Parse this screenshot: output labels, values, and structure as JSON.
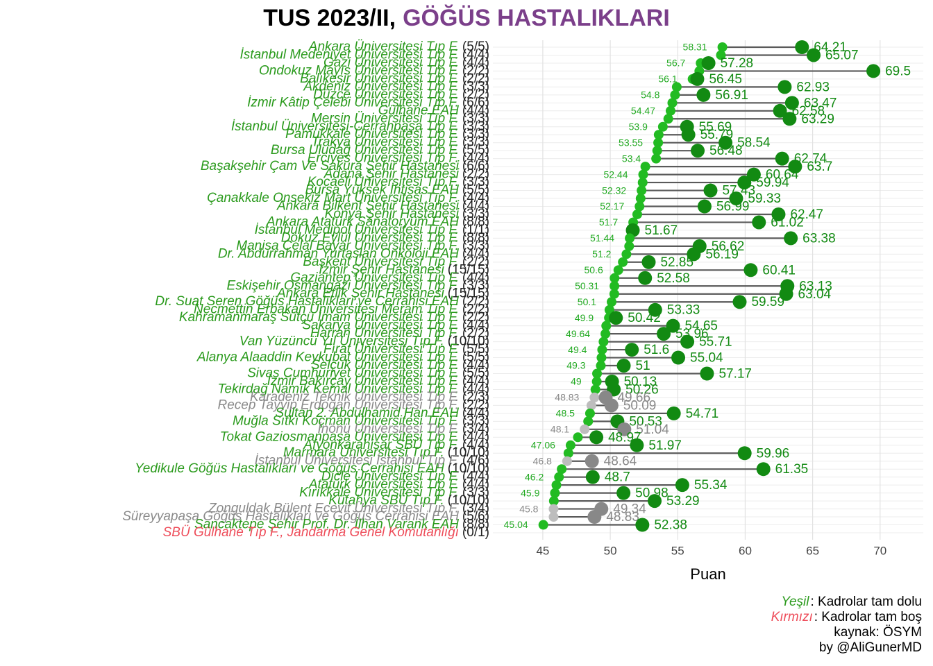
{
  "chart_data": {
    "type": "dumbbell",
    "title": "TUS 2023/II,",
    "title_highlight": "GÖĞÜS HASTALIKLARI",
    "x_label": "Puan",
    "xlim": [
      41.3,
      73.2
    ],
    "xticks": [
      45,
      50,
      55,
      60,
      65,
      70
    ],
    "grid": true,
    "palette": {
      "green": {
        "label": "#2a9a1c",
        "min": "#22bb22",
        "max": "#128a12"
      },
      "gray": {
        "label": "#8a8a8a",
        "min": "#bdbdbd",
        "max": "#888888"
      },
      "red": {
        "label": "#ee4d5a",
        "min": "#ee4d5a",
        "max": "#ee4d5a"
      }
    },
    "rows": [
      {
        "name": "Ankara Üniversitesi Tıp F.",
        "quota": "(5/5)",
        "min": 58.31,
        "max": 64.21,
        "color": "green"
      },
      {
        "name": "İstanbul Medeniyet Üniversitesi Tıp F.",
        "quota": "(4/4)",
        "min": 58.2,
        "max": 65.07,
        "color": "green"
      },
      {
        "name": "Gazi Üniversitesi Tıp F.",
        "quota": "(4/4)",
        "min": 56.7,
        "max": 57.28,
        "color": "green"
      },
      {
        "name": "Ondokuz Mayıs Üniversitesi Tıp F.",
        "quota": "(2/2)",
        "min": 56.6,
        "max": 69.5,
        "color": "green"
      },
      {
        "name": "Balıkesir Üniversitesi Tıp F.",
        "quota": "(2/2)",
        "min": 56.1,
        "max": 56.45,
        "color": "green"
      },
      {
        "name": "Akdeniz Üniversitesi Tıp F.",
        "quota": "(3/3)",
        "min": 54.93,
        "max": 62.93,
        "color": "green"
      },
      {
        "name": "Düzce Üniversitesi Tıp F.",
        "quota": "(2/2)",
        "min": 54.8,
        "max": 56.91,
        "color": "green"
      },
      {
        "name": "İzmir Kâtip Çelebi Üniversitesi Tıp F.",
        "quota": "(6/6)",
        "min": 54.6,
        "max": 63.47,
        "color": "green"
      },
      {
        "name": "Gülhane EAH",
        "quota": "(4/4)",
        "min": 54.47,
        "max": 62.58,
        "color": "green"
      },
      {
        "name": "Mersin Üniversitesi Tıp F.",
        "quota": "(3/3)",
        "min": 54.3,
        "max": 63.29,
        "color": "green"
      },
      {
        "name": "İstanbul Üniversitesi-Cerrahpaşa Tıp F.",
        "quota": "(3/3)",
        "min": 53.9,
        "max": 55.69,
        "color": "green"
      },
      {
        "name": "Pamukkale Üniversitesi Tıp F.",
        "quota": "(3/3)",
        "min": 53.59,
        "max": 55.79,
        "color": "green"
      },
      {
        "name": "Trakya Üniversitesi Tıp F.",
        "quota": "(3/3)",
        "min": 53.55,
        "max": 58.54,
        "color": "green"
      },
      {
        "name": "Bursa Uludağ Üniversitesi Tıp F.",
        "quota": "(5/5)",
        "min": 53.48,
        "max": 56.48,
        "color": "green"
      },
      {
        "name": "Erciyes Üniversitesi Tıp F.",
        "quota": "(4/4)",
        "min": 53.4,
        "max": 62.74,
        "color": "green"
      },
      {
        "name": "Başakşehir Çam Ve Sakura Şehir Hastanesi",
        "quota": "(6/6)",
        "min": 52.6,
        "max": 63.7,
        "color": "green"
      },
      {
        "name": "Adana Şehir Hastanesi",
        "quota": "(2/2)",
        "min": 52.44,
        "max": 60.64,
        "color": "green"
      },
      {
        "name": "Kocaeli Üniversitesi Tıp F.",
        "quota": "(3/3)",
        "min": 52.4,
        "max": 59.94,
        "color": "green"
      },
      {
        "name": "Bursa Yüksek İhtisas EAH",
        "quota": "(5/5)",
        "min": 52.32,
        "max": 57.43,
        "color": "green"
      },
      {
        "name": "Çanakkale Onsekiz Mart Üniversitesi Tıp F.",
        "quota": "(4/4)",
        "min": 52.25,
        "max": 59.33,
        "color": "green"
      },
      {
        "name": "Ankara Bilkent Şehir Hastanesi",
        "quota": "(4/4)",
        "min": 52.17,
        "max": 56.99,
        "color": "green"
      },
      {
        "name": "Konya Şehir Hastanesi",
        "quota": "(3/3)",
        "min": 52.0,
        "max": 62.47,
        "color": "green"
      },
      {
        "name": "Ankara Atatürk Sanatoryum EAH",
        "quota": "(8/8)",
        "min": 51.7,
        "max": 61.02,
        "color": "green"
      },
      {
        "name": "İstanbul Medipol Üniversitesi Tıp F.",
        "quota": "(1/1)",
        "min": 51.67,
        "max": 51.67,
        "color": "green"
      },
      {
        "name": "Dokuz Eylül Üniversitesi Tıp F.",
        "quota": "(8/8)",
        "min": 51.44,
        "max": 63.38,
        "color": "green"
      },
      {
        "name": "Manisa Celal Bayar Üniversitesi Tıp F.",
        "quota": "(3/3)",
        "min": 51.4,
        "max": 56.62,
        "color": "green"
      },
      {
        "name": "Dr. Abdurrahman Yurtaslan Onkoloji EAH",
        "quota": "(4/4)",
        "min": 51.2,
        "max": 56.19,
        "color": "green"
      },
      {
        "name": "Başkent Üniversitesi Tıp F.",
        "quota": "(2/2)",
        "min": 50.93,
        "max": 52.85,
        "color": "green"
      },
      {
        "name": "İzmir Şehir Hastanesi",
        "quota": "(15/15)",
        "min": 50.6,
        "max": 60.41,
        "color": "green"
      },
      {
        "name": "Gaziantep Üniversitesi Tıp F.",
        "quota": "(4/4)",
        "min": 50.32,
        "max": 52.58,
        "color": "green"
      },
      {
        "name": "Eskişehir Osmangazi Üniversitesi Tıp F.",
        "quota": "(3/3)",
        "min": 50.31,
        "max": 63.13,
        "color": "green"
      },
      {
        "name": "Ankara Etlik Şehir Hastanesi",
        "quota": "(15/15)",
        "min": 50.3,
        "max": 63.04,
        "color": "green"
      },
      {
        "name": "Dr. Suat Seren Göğüs Hastalıkları ve Cerrahisi EAH",
        "quota": "(2/2)",
        "min": 50.1,
        "max": 59.59,
        "color": "green"
      },
      {
        "name": "Necmettin Erbakan Üniversitesi Meram Tıp F.",
        "quota": "(2/2)",
        "min": 49.94,
        "max": 53.33,
        "color": "green"
      },
      {
        "name": "Kahramanmaraş Sütçü İmam Üniversitesi Tıp F.",
        "quota": "(2/2)",
        "min": 49.9,
        "max": 50.42,
        "color": "green"
      },
      {
        "name": "Sakarya Üniversitesi Tıp F.",
        "quota": "(4/4)",
        "min": 49.7,
        "max": 54.65,
        "color": "green"
      },
      {
        "name": "Harran Üniversitesi Tıp F.",
        "quota": "(2/2)",
        "min": 49.64,
        "max": 53.96,
        "color": "green"
      },
      {
        "name": "Van Yüzüncü Yıl Üniversitesi Tıp F.",
        "quota": "(10/10)",
        "min": 49.5,
        "max": 55.71,
        "color": "green"
      },
      {
        "name": "Fırat Üniversitesi Tıp F.",
        "quota": "(5/5)",
        "min": 49.4,
        "max": 51.6,
        "color": "green"
      },
      {
        "name": "Alanya Alaaddin Keykubat Üniversitesi Tıp F.",
        "quota": "(5/5)",
        "min": 49.35,
        "max": 55.04,
        "color": "green"
      },
      {
        "name": "Selçuk Üniversitesi Tıp F.",
        "quota": "(4/4)",
        "min": 49.3,
        "max": 51,
        "color": "green"
      },
      {
        "name": "Sivas Cumhuriyet Üniversitesi Tıp F.",
        "quota": "(5/5)",
        "min": 49.02,
        "max": 57.17,
        "color": "green"
      },
      {
        "name": "İzmir Bakırçay Üniversitesi Tıp F.",
        "quota": "(4/4)",
        "min": 49.0,
        "max": 50.13,
        "color": "green"
      },
      {
        "name": "Tekirdağ Namık Kemal Üniversitesi Tıp F.",
        "quota": "(4/4)",
        "min": 48.9,
        "max": 50.26,
        "color": "green"
      },
      {
        "name": "Karadeniz Teknik Üniversitesi Tıp F.",
        "quota": "(2/3)",
        "min": 48.83,
        "max": 49.66,
        "color": "gray"
      },
      {
        "name": "Recep Tayyip Erdoğan Üniversitesi Tıp F.",
        "quota": "(2/2)",
        "min": 48.6,
        "max": 50.09,
        "color": "gray"
      },
      {
        "name": "Sultan 2. Abdulhamid Han EAH",
        "quota": "(4/4)",
        "min": 48.5,
        "max": 54.71,
        "color": "green"
      },
      {
        "name": "Muğla Sıtkı Koçman Üniversitesi Tıp F.",
        "quota": "(3/3)",
        "min": 48.36,
        "max": 50.53,
        "color": "green"
      },
      {
        "name": "İnönü Üniversitesi Tıp F.",
        "quota": "(3/4)",
        "min": 48.1,
        "max": 51.04,
        "color": "gray"
      },
      {
        "name": "Tokat Gaziosmanpaşa Üniversitesi Tıp F.",
        "quota": "(4/4)",
        "min": 47.6,
        "max": 48.97,
        "color": "green"
      },
      {
        "name": "Afyonkarahisar SBÜ Tıp F.",
        "quota": "(4/4)",
        "min": 47.06,
        "max": 51.97,
        "color": "green"
      },
      {
        "name": "Marmara Üniversitesi Tıp F.",
        "quota": "(10/10)",
        "min": 46.9,
        "max": 59.96,
        "color": "green"
      },
      {
        "name": "İstanbul Üniversitesi İstanbul Tıp F.",
        "quota": "(4/6)",
        "min": 46.8,
        "max": 48.64,
        "color": "gray"
      },
      {
        "name": "Yedikule Göğüs Hastalıkları ve Göğüs Cerrahisi EAH",
        "quota": "(10/10)",
        "min": 46.4,
        "max": 61.35,
        "color": "green"
      },
      {
        "name": "Dicle Üniversitesi Tıp F.",
        "quota": "(4/4)",
        "min": 46.2,
        "max": 48.7,
        "color": "green"
      },
      {
        "name": "Atatürk Üniversitesi Tıp F.",
        "quota": "(4/4)",
        "min": 46.01,
        "max": 55.34,
        "color": "green"
      },
      {
        "name": "Kırıkkale Üniversitesi Tıp F.",
        "quota": "(3/3)",
        "min": 45.9,
        "max": 50.98,
        "color": "green"
      },
      {
        "name": "Kütahya SBÜ Tıp F.",
        "quota": "(10/10)",
        "min": 45.82,
        "max": 53.29,
        "color": "green"
      },
      {
        "name": "Zonguldak Bülent Ecevit Üniversitesi Tıp F.",
        "quota": "(3/4)",
        "min": 45.8,
        "max": 49.34,
        "color": "gray"
      },
      {
        "name": "Süreyyapaşa Göğüs Hastalıkları ve Göğüs Cerrahisi EAH",
        "quota": "(5/6)",
        "min": 45.8,
        "max": 48.83,
        "color": "gray"
      },
      {
        "name": "Sancaktepe Şehir Prof. Dr. İlhan Varank EAH",
        "quota": "(8/8)",
        "min": 45.04,
        "max": 52.38,
        "color": "green"
      },
      {
        "name": "SBÜ Gülhane Tıp F., Jandarma Genel Komutanlığı",
        "quota": "(0/1)",
        "min": null,
        "max": null,
        "color": "red"
      }
    ],
    "notes": [
      {
        "key": "Yeşil",
        "text": ": Kadrolar tam dolu",
        "color": "green"
      },
      {
        "key": "Kırmızı",
        "text": ": Kadrolar tam boş",
        "color": "red"
      }
    ],
    "source": "kaynak: ÖSYM",
    "author": "by @AliGunerMD"
  }
}
